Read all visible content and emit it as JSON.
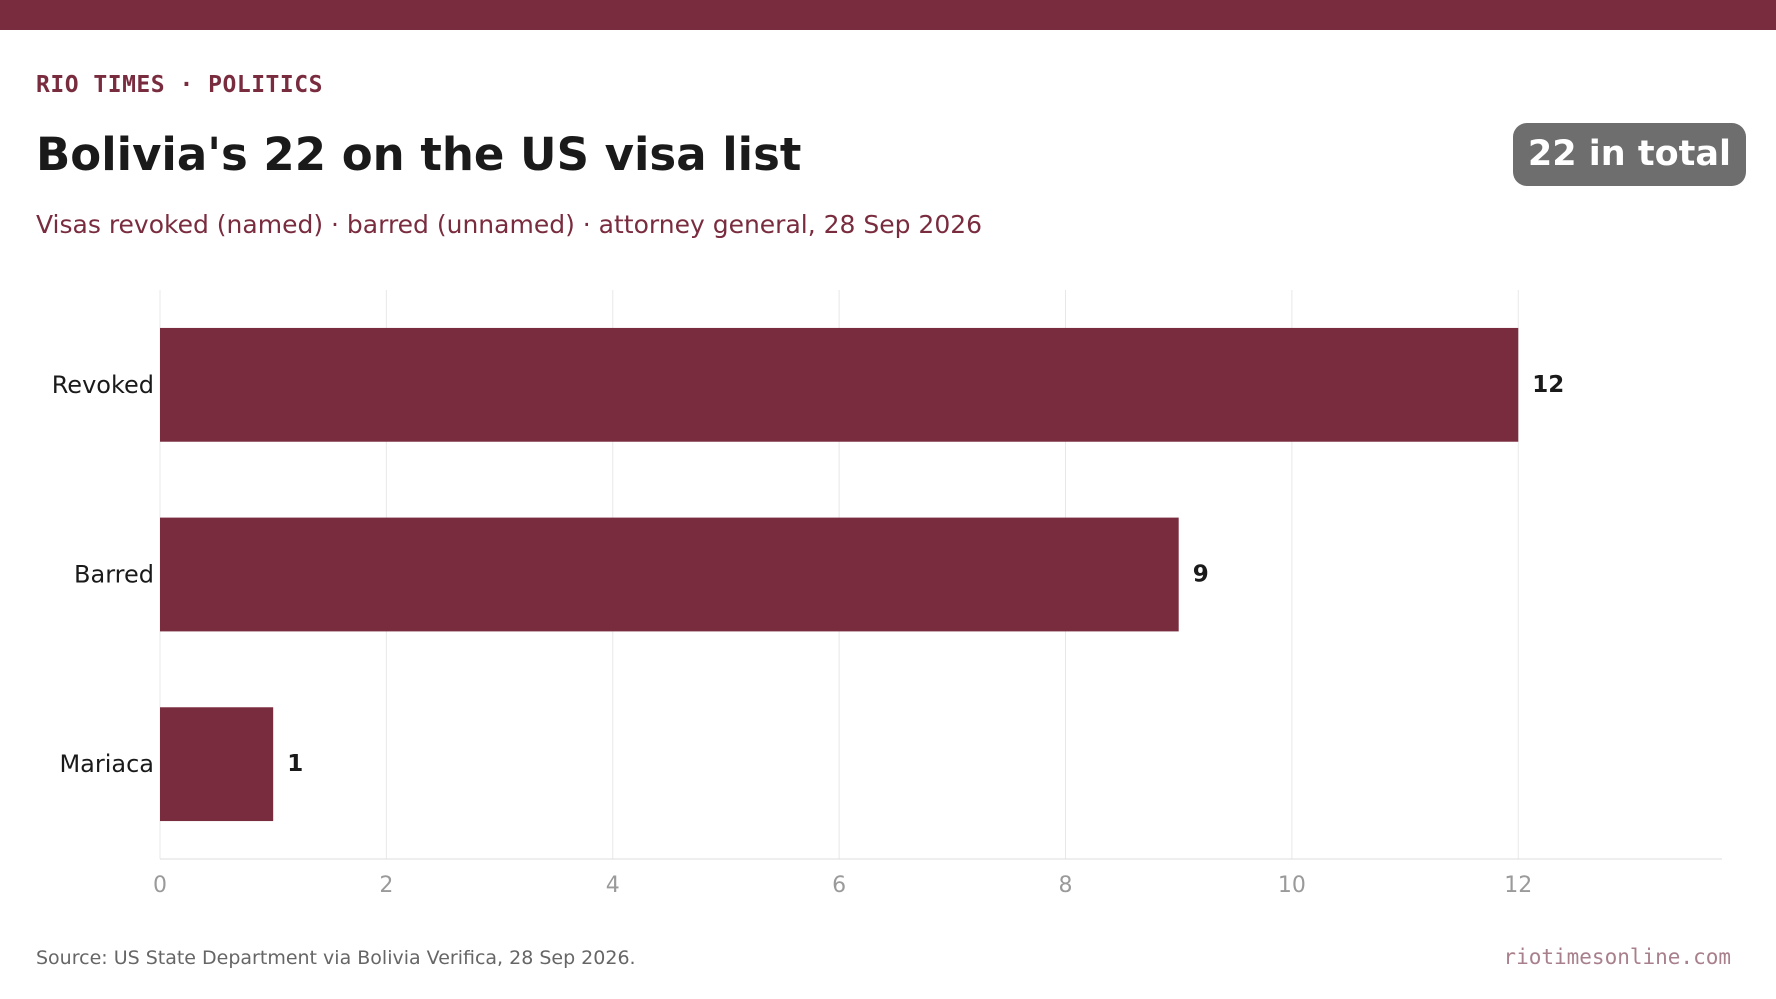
{
  "header": {
    "kicker": "RIO TIMES · POLITICS",
    "title": "Bolivia's 22 on the US visa list",
    "subtitle": "Visas revoked (named) · barred (unnamed) · attorney general, 28 Sep 2026",
    "badge": "22 in total"
  },
  "footer": {
    "source": "Source: US State Department via Bolivia Verifica, 28 Sep 2026.",
    "site": "riotimesonline.com"
  },
  "colors": {
    "accent": "#7a2c3f",
    "bar": "#7a2c3f",
    "badge_bg": "#6e6e6e"
  },
  "chart_data": {
    "type": "bar",
    "orientation": "horizontal",
    "categories": [
      "Revoked",
      "Barred",
      "Mariaca"
    ],
    "values": [
      12,
      9,
      1
    ],
    "data_labels": [
      "12",
      "9",
      "1"
    ],
    "xlim": [
      0,
      13.8
    ],
    "xticks": [
      0,
      2,
      4,
      6,
      8,
      10,
      12
    ],
    "grid": true
  }
}
